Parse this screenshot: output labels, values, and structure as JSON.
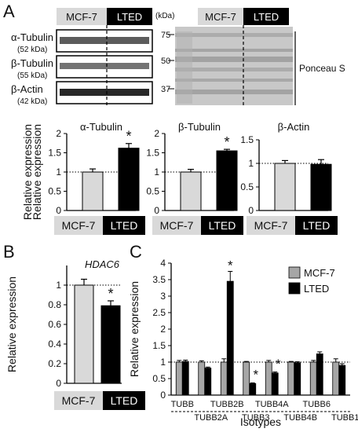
{
  "panels": {
    "a": "A",
    "b": "B",
    "c": "C"
  },
  "blot": {
    "cell_lines": [
      "MCF-7",
      "LTED"
    ],
    "kda_header": "(kDa)",
    "rows": [
      {
        "name": "α-Tubulin",
        "kda": "(52 kDa)"
      },
      {
        "name": "β-Tubulin",
        "kda": "(55 kDa)"
      },
      {
        "name": "β-Actin",
        "kda": "(42 kDa)"
      }
    ],
    "markers": [
      "75",
      "50",
      "37"
    ],
    "ponceau_label": "Ponceau S"
  },
  "colors": {
    "mcf7": "#d9d9d9",
    "lted": "#000000",
    "mcf7_legend": "#a6a6a6"
  },
  "chart_data": [
    {
      "type": "bar",
      "title": "α-Tubulin",
      "ylabel": "Relative expression",
      "categories": [
        "MCF-7",
        "LTED"
      ],
      "values": [
        1.0,
        1.62
      ],
      "errors": [
        0.08,
        0.12
      ],
      "significant": [
        false,
        true
      ],
      "ylim": [
        0,
        2
      ],
      "yticks": [
        "0",
        "0.5",
        "1",
        "1.5",
        "2"
      ],
      "reference_line": 1
    },
    {
      "type": "bar",
      "title": "β-Tubulin",
      "categories": [
        "MCF-7",
        "LTED"
      ],
      "values": [
        1.0,
        1.55
      ],
      "errors": [
        0.07,
        0.04
      ],
      "significant": [
        false,
        true
      ],
      "ylim": [
        0,
        2
      ],
      "yticks": [
        "0",
        "0.5",
        "1",
        "1.5",
        "2"
      ],
      "reference_line": 1
    },
    {
      "type": "bar",
      "title": "β-Actin",
      "categories": [
        "MCF-7",
        "LTED"
      ],
      "values": [
        1.0,
        0.98
      ],
      "errors": [
        0.06,
        0.1
      ],
      "significant": [
        false,
        false
      ],
      "ylim": [
        0,
        1.5
      ],
      "yticks": [
        "0",
        "0.5",
        "1",
        "1.5"
      ],
      "reference_line": 1
    },
    {
      "type": "bar",
      "title": "HDAC6",
      "ylabel": "Relative expression",
      "categories": [
        "MCF-7",
        "LTED"
      ],
      "values": [
        1.0,
        0.79
      ],
      "errors": [
        0.06,
        0.05
      ],
      "significant": [
        false,
        true
      ],
      "ylim": [
        0,
        1.2
      ],
      "yticks": [
        "0",
        "0.2",
        "0.4",
        "0.6",
        "0.8",
        "1"
      ],
      "reference_line": 1
    },
    {
      "type": "bar",
      "ylabel": "Relative expression",
      "xlabel": "Isotypes",
      "categories": [
        "TUBB",
        "TUBB2A",
        "TUBB2B",
        "TUBB3",
        "TUBB4A",
        "TUBB4B",
        "TUBB6",
        "TUBB1"
      ],
      "series": [
        {
          "name": "MCF-7",
          "values": [
            1.0,
            1.0,
            1.0,
            1.0,
            1.0,
            1.0,
            1.0,
            1.0
          ],
          "errors": [
            0.05,
            0.04,
            0.1,
            0.02,
            0.05,
            0.02,
            0.05,
            0.1
          ]
        },
        {
          "name": "LTED",
          "values": [
            1.02,
            0.82,
            3.45,
            0.35,
            0.67,
            0.98,
            1.25,
            0.9
          ],
          "errors": [
            0.04,
            0.03,
            0.3,
            0.02,
            0.03,
            0.03,
            0.06,
            0.05
          ]
        }
      ],
      "significant": [
        false,
        false,
        true,
        true,
        true,
        false,
        false,
        false
      ],
      "ylim": [
        0,
        4
      ],
      "yticks": [
        "0",
        "0.5",
        "1",
        "1.5",
        "2",
        "2.5",
        "3",
        "3.5",
        "4"
      ],
      "reference_line": 1,
      "legend": "top-right"
    }
  ],
  "star": "*"
}
